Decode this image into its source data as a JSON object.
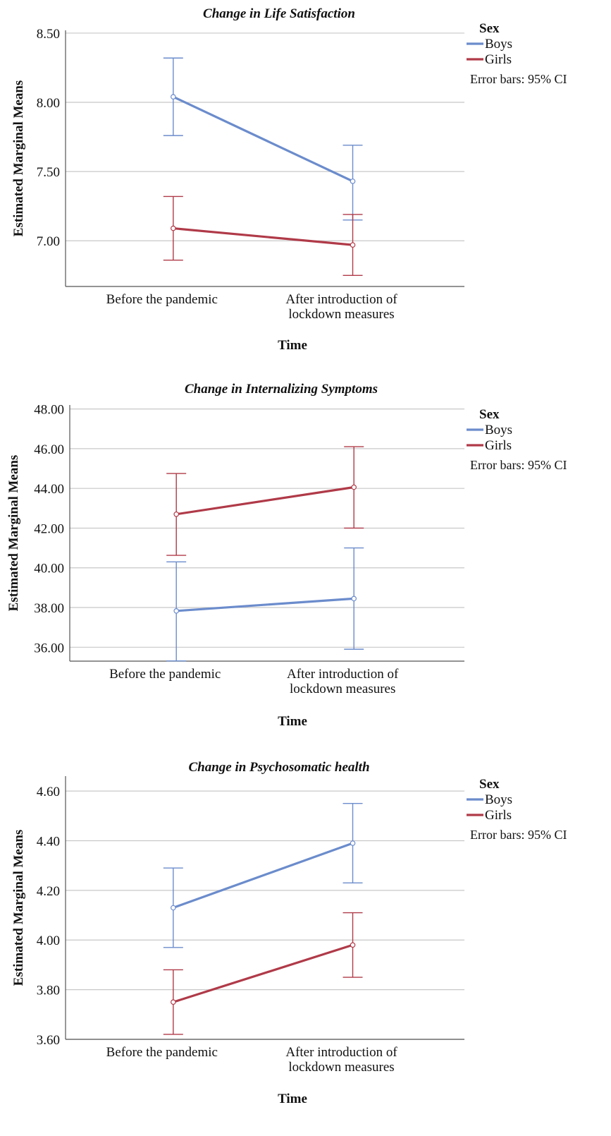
{
  "chart_data": [
    {
      "type": "line",
      "title": "Change in Life Satisfaction",
      "xlabel": "Time",
      "ylabel": "Estimated Marginal Means",
      "categories": [
        [
          "Before the pandemic"
        ],
        [
          "After introduction of",
          "lockdown measures"
        ]
      ],
      "ylim": [
        6.67,
        8.52
      ],
      "yticks": [
        "7.00",
        "7.50",
        "8.00",
        "8.50"
      ],
      "legend_title": "Sex",
      "legend_position": "right",
      "note": "Error bars: 95% CI",
      "series": [
        {
          "name": "Boys",
          "color": "#6b8ccc",
          "values": [
            8.04,
            7.43
          ],
          "ci_low": [
            7.76,
            7.15
          ],
          "ci_high": [
            8.32,
            7.69
          ]
        },
        {
          "name": "Girls",
          "color": "#b03a48",
          "values": [
            7.09,
            6.97
          ],
          "ci_low": [
            6.86,
            6.75
          ],
          "ci_high": [
            7.32,
            7.19
          ]
        }
      ]
    },
    {
      "type": "line",
      "title": "Change in Internalizing Symptoms",
      "xlabel": "Time",
      "ylabel": "Estimated Marginal Means",
      "categories": [
        [
          "Before the pandemic"
        ],
        [
          "After introduction of",
          "lockdown measures"
        ]
      ],
      "ylim": [
        35.3,
        48.2
      ],
      "yticks": [
        "36.00",
        "38.00",
        "40.00",
        "42.00",
        "44.00",
        "46.00",
        "48.00"
      ],
      "legend_title": "Sex",
      "legend_position": "right",
      "note": "Error bars: 95% CI",
      "series": [
        {
          "name": "Boys",
          "color": "#6b8ccc",
          "values": [
            37.83,
            38.45
          ],
          "ci_low": [
            35.31,
            35.9
          ],
          "ci_high": [
            40.3,
            41.0
          ]
        },
        {
          "name": "Girls",
          "color": "#b03a48",
          "values": [
            42.7,
            44.06
          ],
          "ci_low": [
            40.63,
            42.0
          ],
          "ci_high": [
            44.75,
            46.1
          ]
        }
      ]
    },
    {
      "type": "line",
      "title": "Change in Psychosomatic health",
      "xlabel": "Time",
      "ylabel": "Estimated Marginal Means",
      "categories": [
        [
          "Before the pandemic"
        ],
        [
          "After introduction of",
          "lockdown measures"
        ]
      ],
      "ylim": [
        3.6,
        4.66
      ],
      "yticks": [
        "3.60",
        "3.80",
        "4.00",
        "4.20",
        "4.40",
        "4.60"
      ],
      "legend_title": "Sex",
      "legend_position": "right",
      "note": "Error bars: 95% CI",
      "series": [
        {
          "name": "Boys",
          "color": "#6b8ccc",
          "values": [
            4.13,
            4.39
          ],
          "ci_low": [
            3.97,
            4.23
          ],
          "ci_high": [
            4.29,
            4.55
          ]
        },
        {
          "name": "Girls",
          "color": "#b03a48",
          "values": [
            3.75,
            3.98
          ],
          "ci_low": [
            3.62,
            3.85
          ],
          "ci_high": [
            3.88,
            4.11
          ]
        }
      ]
    }
  ]
}
